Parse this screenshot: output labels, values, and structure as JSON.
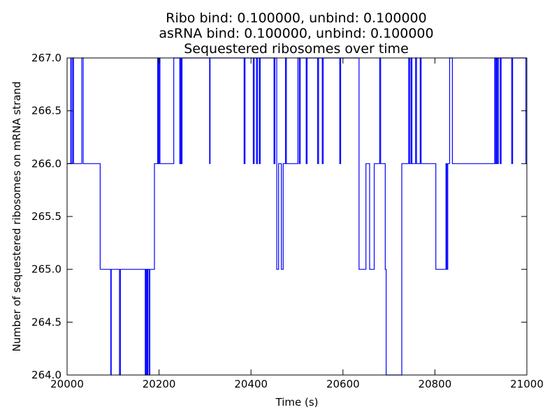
{
  "chart_data": {
    "type": "line",
    "title_lines": [
      "Ribo bind: 0.100000, unbind: 0.100000",
      "asRNA bind: 0.100000, unbind: 0.100000",
      "Sequestered ribosomes over time"
    ],
    "xlabel": "Time (s)",
    "ylabel": "Number of sequestered ribosomes on mRNA strand",
    "xlim": [
      20000,
      21000
    ],
    "ylim": [
      264.0,
      267.0
    ],
    "xticks": [
      20000,
      20200,
      20400,
      20600,
      20800,
      21000
    ],
    "xtick_labels": [
      "20000",
      "20200",
      "20400",
      "20600",
      "20800",
      "21000"
    ],
    "yticks": [
      264.0,
      264.5,
      265.0,
      265.5,
      266.0,
      266.5,
      267.0
    ],
    "ytick_labels": [
      "264.0",
      "264.5",
      "265.0",
      "265.5",
      "266.0",
      "266.5",
      "267.0"
    ],
    "grid": false,
    "legend": "none",
    "line_color": "#0000ff",
    "series": [
      {
        "style": "step",
        "x": [
          20000,
          20008,
          20009,
          20012,
          20014,
          20032,
          20035,
          20060,
          20072,
          20095,
          20096,
          20114,
          20116,
          20170,
          20171,
          20173,
          20174,
          20175,
          20176,
          20179,
          20180,
          20189,
          20190,
          20197,
          20198,
          20200,
          20202,
          20230,
          20232,
          20245,
          20247,
          20248,
          20250,
          20310,
          20311,
          20385,
          20387,
          20405,
          20407,
          20412,
          20414,
          20418,
          20420,
          20450,
          20452,
          20456,
          20460,
          20466,
          20470,
          20475,
          20477,
          20500,
          20502,
          20505,
          20507,
          20520,
          20522,
          20545,
          20547,
          20555,
          20557,
          20593,
          20595,
          20635,
          20650,
          20658,
          20668,
          20676,
          20680,
          20682,
          20692,
          20694,
          20696,
          20728,
          20743,
          20745,
          20748,
          20750,
          20758,
          20760,
          20768,
          20770,
          20802,
          20822,
          20824,
          20826,
          20828,
          20832,
          20838,
          20840,
          20930,
          20932,
          20934,
          20936,
          20938,
          20942,
          20944,
          20967,
          20969,
          20998,
          21000
        ],
        "y": [
          266,
          267,
          266,
          267,
          266,
          267,
          266,
          266,
          265,
          264,
          265,
          264,
          265,
          264,
          265,
          264,
          265,
          264,
          265,
          264,
          265,
          265,
          266,
          267,
          266,
          267,
          266,
          266,
          267,
          266,
          267,
          266,
          267,
          266,
          267,
          266,
          267,
          266,
          267,
          266,
          267,
          266,
          267,
          266,
          267,
          265,
          266,
          265,
          266,
          267,
          266,
          266,
          267,
          266,
          267,
          266,
          267,
          266,
          267,
          266,
          267,
          266,
          267,
          265,
          266,
          265,
          266,
          266,
          267,
          266,
          265,
          264,
          264,
          266,
          267,
          266,
          267,
          266,
          267,
          266,
          267,
          266,
          265,
          265,
          266,
          265,
          266,
          267,
          266,
          266,
          267,
          266,
          267,
          266,
          267,
          266,
          267,
          266,
          267,
          266,
          266
        ]
      }
    ]
  }
}
